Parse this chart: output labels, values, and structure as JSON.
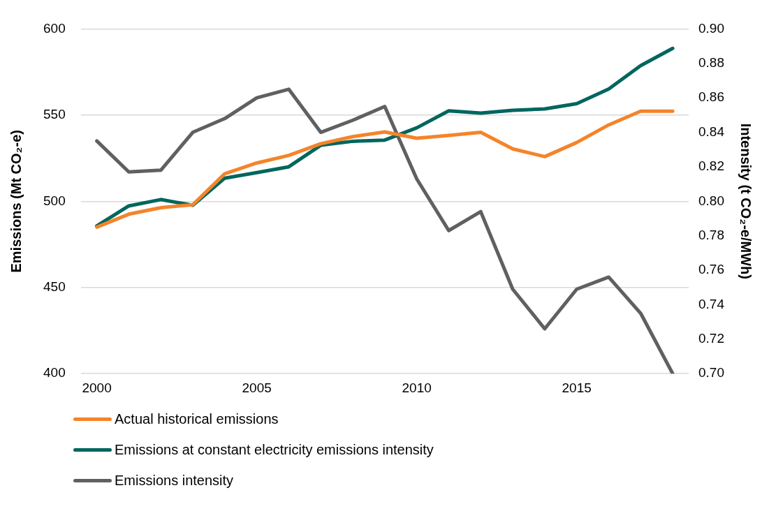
{
  "chart_data": {
    "type": "line",
    "ylabel": "Emissions (Mt CO₂-e)",
    "y2label": "Intensity (t CO₂-e/MWh)",
    "categories": [
      "2000",
      null,
      null,
      null,
      null,
      "2005",
      null,
      null,
      null,
      null,
      "2010",
      null,
      null,
      null,
      null,
      "2015",
      null,
      null,
      null
    ],
    "series": [
      {
        "name": "Actual historical emissions",
        "color": "#f4842a",
        "values": [
          485.0,
          492.5,
          496.3,
          498.0,
          516.0,
          522.2,
          526.6,
          533.4,
          537.5,
          540.2,
          536.6,
          538.2,
          540.0,
          530.4,
          525.9,
          534.1,
          544.3,
          552.3,
          552.3
        ]
      },
      {
        "name": "Emissions at constant electricity emissions intensity",
        "color": "#00665e",
        "values": [
          485.7,
          497.3,
          501.0,
          497.7,
          513.4,
          516.6,
          520.0,
          532.5,
          534.8,
          535.5,
          542.6,
          552.5,
          551.2,
          552.8,
          553.6,
          556.6,
          565.1,
          578.7,
          588.7
        ]
      },
      {
        "name": "Emissions intensity",
        "color": "#5f6062",
        "axis": "y2",
        "values": [
          0.835,
          0.817,
          0.818,
          0.84,
          0.848,
          0.86,
          0.865,
          0.84,
          0.847,
          0.855,
          0.813,
          0.783,
          0.794,
          0.749,
          0.726,
          0.749,
          0.756,
          0.735,
          0.7
        ]
      }
    ],
    "ylim": [
      400,
      600
    ],
    "yticks": [
      400,
      450,
      500,
      550,
      600
    ],
    "y2lim": [
      0.7,
      0.9
    ],
    "y2ticks": [
      {
        "value": 0.7,
        "label": "0.70"
      },
      {
        "value": 0.72,
        "label": "0.72"
      },
      {
        "value": 0.74,
        "label": "0.74"
      },
      {
        "value": 0.76,
        "label": "0.76"
      },
      {
        "value": 0.78,
        "label": "0.78"
      },
      {
        "value": 0.8,
        "label": "0.80"
      },
      {
        "value": 0.82,
        "label": "0.82"
      },
      {
        "value": 0.84,
        "label": "0.84"
      },
      {
        "value": 0.86,
        "label": "0.86"
      },
      {
        "value": 0.88,
        "label": "0.88"
      },
      {
        "value": 0.9,
        "label": "0.90"
      }
    ],
    "grid": "y",
    "legend": "bottom",
    "marker": "none"
  }
}
